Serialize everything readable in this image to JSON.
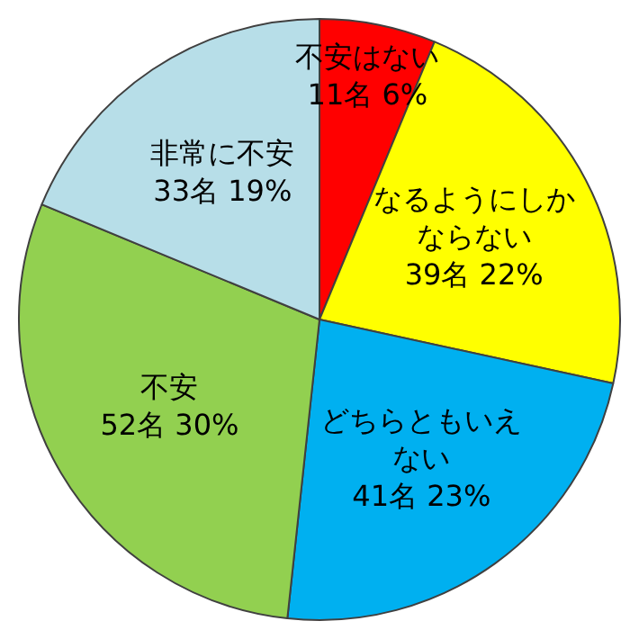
{
  "chart_data": {
    "type": "pie",
    "categories": [
      "不安はない",
      "なるようにしかならない",
      "どちらともいえない",
      "不安",
      "非常に不安"
    ],
    "values": [
      11,
      39,
      41,
      52,
      33
    ],
    "value_labels": [
      "11名 6%",
      "39名 22%",
      "41名 23%",
      "52名 30%",
      "33名 19%"
    ],
    "colors": [
      "#ff0000",
      "#ffff00",
      "#00b0f0",
      "#92d050",
      "#b7dee8"
    ],
    "legend": false
  }
}
